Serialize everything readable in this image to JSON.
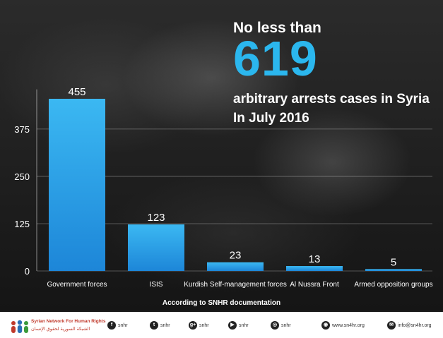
{
  "headline": {
    "pre": "No less than",
    "number": "619",
    "line1": "arbitrary arrests cases in Syria",
    "line2": "In July 2016"
  },
  "chart_data": {
    "type": "bar",
    "categories": [
      "Government forces",
      "ISIS",
      "Kurdish Self-management forces",
      "Al Nussra Front",
      "Armed opposition groups"
    ],
    "values": [
      455,
      123,
      23,
      13,
      5
    ],
    "yticks": [
      0,
      125,
      250,
      375
    ],
    "ylim": [
      0,
      480
    ],
    "grid": true,
    "bar_color": "#2aa8ea",
    "title": "",
    "xlabel": "",
    "ylabel": ""
  },
  "source_note": "According to SNHR documentation",
  "footer": {
    "org_en": "Syrian Network For Human Rights",
    "org_ar": "الشبكة السورية لحقوق الإنسان",
    "social": [
      {
        "icon": "facebook-icon",
        "glyph": "f",
        "label": "snhr"
      },
      {
        "icon": "twitter-icon",
        "glyph": "t",
        "label": "snhr"
      },
      {
        "icon": "google-plus-icon",
        "glyph": "g+",
        "label": "snhr"
      },
      {
        "icon": "youtube-icon",
        "glyph": "▶",
        "label": "snhr"
      },
      {
        "icon": "instagram-icon",
        "glyph": "◎",
        "label": "snhr"
      },
      {
        "icon": "website-icon",
        "glyph": "◉",
        "label": "www.sn4hr.org"
      },
      {
        "icon": "email-icon",
        "glyph": "✉",
        "label": "info@sn4hr.org"
      }
    ]
  }
}
